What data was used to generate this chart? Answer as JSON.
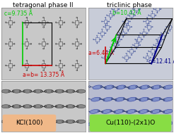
{
  "title_left": "tetragonal phase II",
  "title_right": "triclinic phase",
  "label_tl_green": "c=9.735 Å",
  "label_tl_red": "a=b= 13.375 Å",
  "label_tr_green": "b=10.42 Å",
  "label_tr_red": "a=6.44 Å",
  "label_tr_blue": "c=12.41 Å",
  "label_bl": "KCl(100)",
  "label_br": "Cu(110)-(2x1)O",
  "bg_color": "#ffffff",
  "panel_tl_bg": "#c8c8c8",
  "panel_tr_bg": "#c8ccd8",
  "panel_bl_bg": "#c8c8c8",
  "panel_br_bg": "#b8bcd0",
  "badge_bl_color": "#f0b888",
  "badge_br_color": "#88dd44",
  "title_fontsize": 6.5,
  "label_fontsize": 5.5,
  "badge_fontsize": 6.5,
  "green_color": "#00cc00",
  "red_color": "#cc0000",
  "blue_color": "#000088",
  "mol_color_tl": "#404040",
  "mol_color_bl": "#505050",
  "mol_color_tr": "#5060a0",
  "mol_color_br": "#5060a0"
}
